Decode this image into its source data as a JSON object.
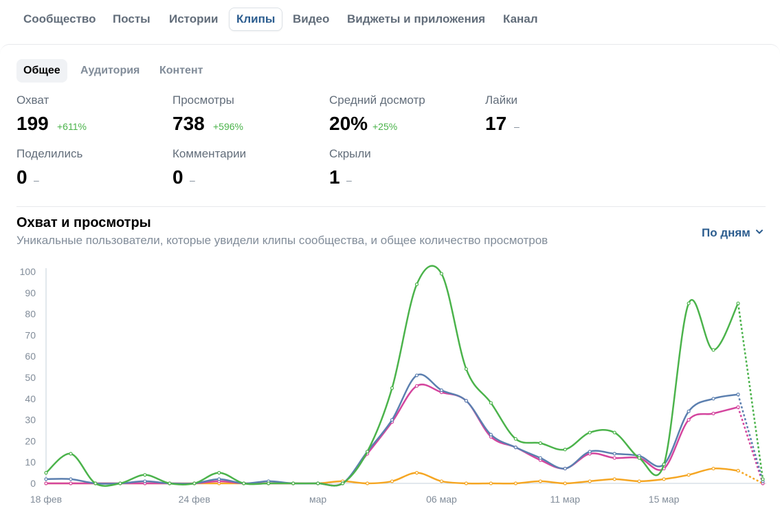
{
  "top_tabs": [
    {
      "label": "Сообщество",
      "active": false
    },
    {
      "label": "Посты",
      "active": false
    },
    {
      "label": "Истории",
      "active": false
    },
    {
      "label": "Клипы",
      "active": true
    },
    {
      "label": "Видео",
      "active": false
    },
    {
      "label": "Виджеты и приложения",
      "active": false
    },
    {
      "label": "Канал",
      "active": false
    }
  ],
  "sub_tabs": [
    {
      "label": "Общее",
      "active": true
    },
    {
      "label": "Аудитория",
      "active": false
    },
    {
      "label": "Контент",
      "active": false
    }
  ],
  "stats": [
    {
      "label": "Охват",
      "value": "199",
      "delta": "+611%"
    },
    {
      "label": "Просмотры",
      "value": "738",
      "delta": "+596%"
    },
    {
      "label": "Средний досмотр",
      "value": "20%",
      "delta": "+25%"
    },
    {
      "label": "Лайки",
      "value": "17",
      "delta": "–"
    },
    {
      "label": "Поделились",
      "value": "0",
      "delta": "–"
    },
    {
      "label": "Комментарии",
      "value": "0",
      "delta": "–"
    },
    {
      "label": "Скрыли",
      "value": "1",
      "delta": "–"
    }
  ],
  "chart_section": {
    "title": "Охват и просмотры",
    "subtitle": "Уникальные пользователи, которые увидели клипы сообщества, и общее количество просмотров",
    "period_label": "По дням",
    "period_icon": "chevron-down-icon"
  },
  "colors": {
    "accent": "#2c5d8f",
    "positive": "#4bb34b",
    "series_green": "#4bb34b",
    "series_blue": "#5b7faf",
    "series_pink": "#d4459e",
    "series_orange": "#f5a623"
  },
  "chart_data": {
    "type": "line",
    "ylim": [
      0,
      100
    ],
    "yticks": [
      0,
      10,
      20,
      30,
      40,
      50,
      60,
      70,
      80,
      90,
      100
    ],
    "x_tick_labels": [
      {
        "index": 0,
        "label": "18 фев"
      },
      {
        "index": 6,
        "label": "24 фев"
      },
      {
        "index": 11,
        "label": "мар"
      },
      {
        "index": 16,
        "label": "06 мар"
      },
      {
        "index": 21,
        "label": "11 мар"
      },
      {
        "index": 25,
        "label": "15 мар"
      }
    ],
    "dashed_last_segment": true,
    "series": [
      {
        "color": "#4bb34b",
        "values": [
          5,
          14,
          0,
          0,
          4,
          0,
          0,
          5,
          0,
          0,
          0,
          0,
          0,
          15,
          45,
          94,
          99,
          54,
          38,
          21,
          19,
          16,
          24,
          24,
          12,
          9,
          85,
          63,
          85,
          2
        ]
      },
      {
        "color": "#5b7faf",
        "values": [
          2,
          2,
          0,
          0,
          1,
          0,
          0,
          2,
          0,
          1,
          0,
          0,
          0,
          15,
          30,
          51,
          44,
          39,
          23,
          17,
          12,
          7,
          15,
          14,
          13,
          9,
          34,
          40,
          42,
          1
        ]
      },
      {
        "color": "#d4459e",
        "values": [
          0,
          0,
          0,
          0,
          0,
          0,
          0,
          1,
          0,
          0,
          0,
          0,
          0,
          14,
          29,
          46,
          43,
          39,
          22,
          17,
          11,
          7,
          14,
          12,
          12,
          7,
          30,
          33,
          36,
          0
        ]
      },
      {
        "color": "#f5a623",
        "values": [
          0,
          0,
          0,
          0,
          0,
          0,
          0,
          0,
          0,
          0,
          0,
          0,
          1,
          0,
          1,
          5,
          1,
          0,
          0,
          0,
          1,
          0,
          1,
          2,
          1,
          2,
          4,
          7,
          6,
          0
        ]
      }
    ]
  }
}
